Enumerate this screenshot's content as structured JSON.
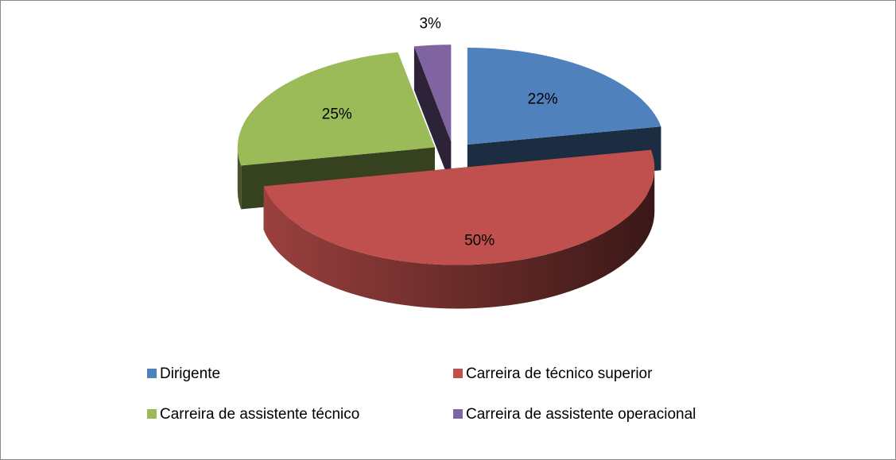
{
  "chart_data": {
    "type": "pie",
    "categories": [
      "Dirigente",
      "Carreira de técnico superior",
      "Carreira de assistente técnico",
      "Carreira de assistente operacional"
    ],
    "values": [
      22,
      50,
      25,
      3
    ],
    "value_labels": [
      "22%",
      "50%",
      "25%",
      "3%"
    ],
    "colors": [
      "#4f81bd",
      "#c0504d",
      "#9bbb59",
      "#8064a2"
    ],
    "legend": "bottom"
  }
}
